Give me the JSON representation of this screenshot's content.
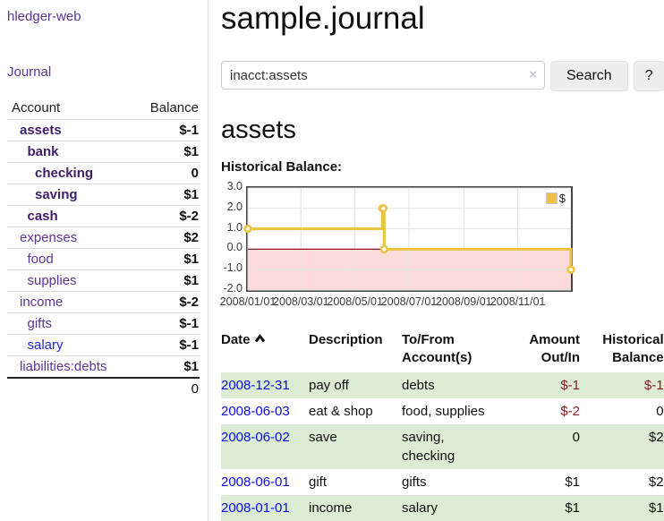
{
  "app": {
    "brand": "hledger-web"
  },
  "sidebar": {
    "journal_link": "Journal",
    "accounts": {
      "headers": {
        "account": "Account",
        "balance": "Balance"
      },
      "rows": [
        {
          "name": "assets",
          "indent": 1,
          "bold": true,
          "balance": "$-1",
          "balance_style": "neg"
        },
        {
          "name": "bank",
          "indent": 2,
          "bold": true,
          "balance": "$1",
          "balance_style": "pos"
        },
        {
          "name": "checking",
          "indent": 3,
          "bold": true,
          "balance": "0",
          "balance_style": "pos"
        },
        {
          "name": "saving",
          "indent": 3,
          "bold": true,
          "balance": "$1",
          "balance_style": "pos"
        },
        {
          "name": "cash",
          "indent": 2,
          "bold": true,
          "balance": "$-2",
          "balance_style": "neg"
        },
        {
          "name": "expenses",
          "indent": 1,
          "bold": false,
          "balance": "$2",
          "balance_style": "pos"
        },
        {
          "name": "food",
          "indent": 2,
          "bold": false,
          "balance": "$1",
          "balance_style": "pos"
        },
        {
          "name": "supplies",
          "indent": 2,
          "bold": false,
          "balance": "$1",
          "balance_style": "pos"
        },
        {
          "name": "income",
          "indent": 1,
          "bold": false,
          "balance": "$-2",
          "balance_style": "neg-soft"
        },
        {
          "name": "gifts",
          "indent": 2,
          "bold": false,
          "balance": "$-1",
          "balance_style": "neg-soft"
        },
        {
          "name": "salary",
          "indent": 2,
          "bold": false,
          "unvisited": true,
          "balance": "$-1",
          "balance_style": "neg-soft"
        },
        {
          "name": "liabilities:debts",
          "indent": 1,
          "bold": false,
          "balance": "$1",
          "balance_style": "pos"
        }
      ],
      "total": "0"
    }
  },
  "main": {
    "title": "sample.journal",
    "search": {
      "value": "inacct:assets",
      "clear_icon": "×",
      "button_label": "Search",
      "help_label": "?"
    },
    "account_heading": "assets",
    "chart_label": "Historical Balance:"
  },
  "chart_data": {
    "type": "line",
    "step": true,
    "title": "Historical Balance:",
    "series": [
      {
        "name": "$",
        "color": "#edc240",
        "points": [
          [
            "2008-01-01",
            1
          ],
          [
            "2008-06-01",
            2
          ],
          [
            "2008-06-02",
            2
          ],
          [
            "2008-06-03",
            0
          ],
          [
            "2008-12-31",
            -1
          ]
        ]
      }
    ],
    "xlim": [
      "2008-01-01",
      "2008-12-31"
    ],
    "ylim": [
      -2,
      3
    ],
    "y_ticks": [
      "3.0",
      "2.0",
      "1.0",
      "0.0",
      "-1.0",
      "-2.0"
    ],
    "x_ticks": [
      "2008/01/01",
      "2008/03/01",
      "2008/05/01",
      "2008/07/01",
      "2008/09/01",
      "2008/11/01"
    ],
    "legend": {
      "label": "$",
      "position": "top-right"
    },
    "grid": true,
    "grid_color": "#e2e2e2",
    "zero_line_color": "#8b1a1a",
    "negative_region_color": "#fbdada",
    "marker_fill": "#ffffff",
    "border_color": "#454545"
  },
  "transactions": {
    "headers": {
      "date": "Date",
      "description": "Description",
      "accounts": "To/From Account(s)",
      "amount": "Amount Out/In",
      "balance": "Historical Balance"
    },
    "sort": {
      "column": "date",
      "direction": "ascending"
    },
    "rows": [
      {
        "date": "2008-12-31",
        "description": "pay off",
        "accounts": "debts",
        "amount": "$-1",
        "amount_neg": true,
        "balance": "$-1",
        "balance_neg": true
      },
      {
        "date": "2008-06-03",
        "description": "eat & shop",
        "accounts": "food, supplies",
        "amount": "$-2",
        "amount_neg": true,
        "balance": "0",
        "balance_neg": false
      },
      {
        "date": "2008-06-02",
        "description": "save",
        "accounts": "saving, checking",
        "amount": "0",
        "amount_neg": false,
        "balance": "$2",
        "balance_neg": false
      },
      {
        "date": "2008-06-01",
        "description": "gift",
        "accounts": "gifts",
        "amount": "$1",
        "amount_neg": false,
        "balance": "$2",
        "balance_neg": false
      },
      {
        "date": "2008-01-01",
        "description": "income",
        "accounts": "salary",
        "amount": "$1",
        "amount_neg": false,
        "balance": "$1",
        "balance_neg": false
      }
    ]
  }
}
